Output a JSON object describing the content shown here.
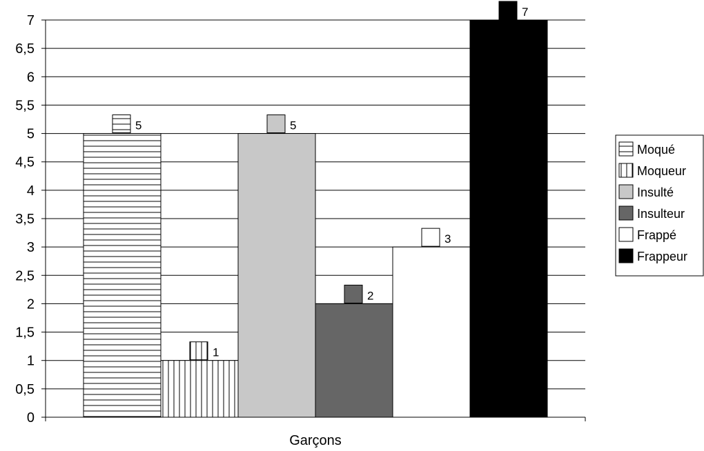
{
  "chart_data": {
    "type": "bar",
    "categories": [
      "Garçons"
    ],
    "series": [
      {
        "name": "Moqué",
        "values": [
          5
        ],
        "fill": "hlines",
        "color": "#ffffff"
      },
      {
        "name": "Moqueur",
        "values": [
          1
        ],
        "fill": "vlines",
        "color": "#ffffff"
      },
      {
        "name": "Insulté",
        "values": [
          5
        ],
        "fill": "solid",
        "color": "#c8c8c8"
      },
      {
        "name": "Insulteur",
        "values": [
          2
        ],
        "fill": "solid",
        "color": "#666666"
      },
      {
        "name": "Frappé",
        "values": [
          3
        ],
        "fill": "solid",
        "color": "#ffffff"
      },
      {
        "name": "Frappeur",
        "values": [
          7
        ],
        "fill": "solid",
        "color": "#000000"
      }
    ],
    "yticks": [
      "0",
      "0,5",
      "1",
      "1,5",
      "2",
      "2,5",
      "3",
      "3,5",
      "4",
      "4,5",
      "5",
      "5,5",
      "6",
      "6,5",
      "7"
    ],
    "ylim": [
      0,
      7
    ],
    "grid": true,
    "legend_position": "right"
  }
}
